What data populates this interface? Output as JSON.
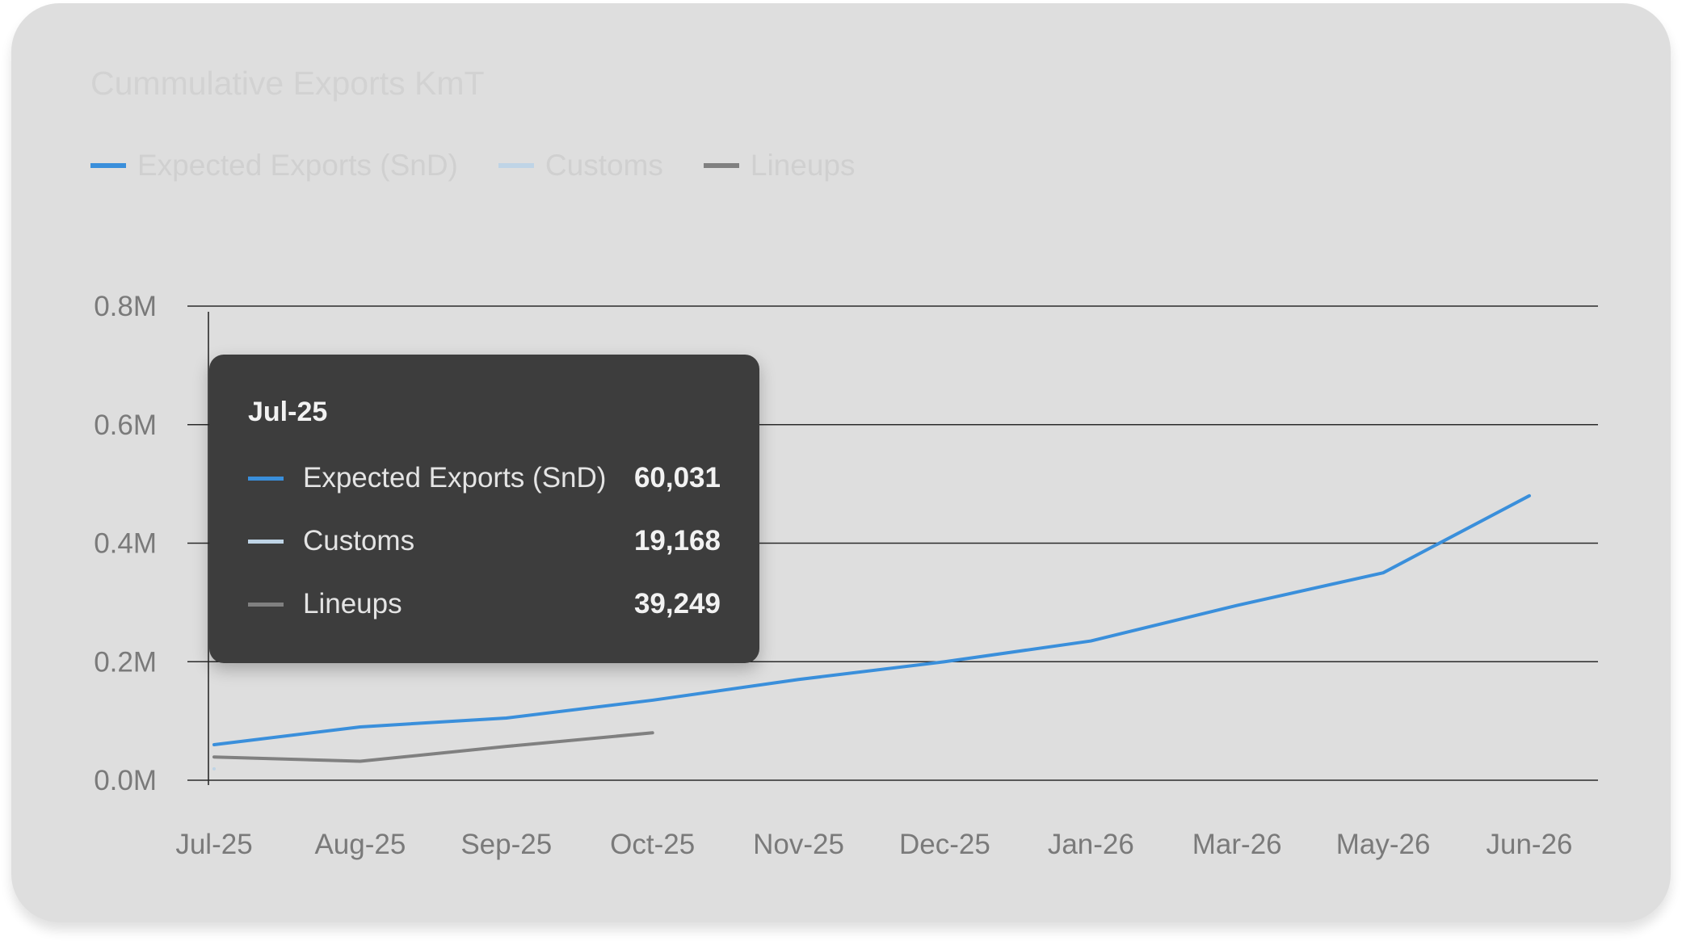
{
  "title": "Cummulative Exports KmT",
  "colors": {
    "expected": "#3a8fdb",
    "customs": "#bfd4e6",
    "lineups": "#808080"
  },
  "legend": [
    {
      "label": "Expected Exports (SnD)",
      "color": "#3a8fdb"
    },
    {
      "label": "Customs",
      "color": "#bfd4e6"
    },
    {
      "label": "Lineups",
      "color": "#808080"
    }
  ],
  "tooltip": {
    "title": "Jul-25",
    "rows": [
      {
        "label": "Expected Exports (SnD)",
        "value": "60,031",
        "color": "#3a8fdb"
      },
      {
        "label": "Customs",
        "value": "19,168",
        "color": "#bfd4e6"
      },
      {
        "label": "Lineups",
        "value": "39,249",
        "color": "#808080"
      }
    ]
  },
  "chart_data": {
    "type": "line",
    "title": "Cummulative Exports KmT",
    "xlabel": "",
    "ylabel": "",
    "categories": [
      "Jul-25",
      "Aug-25",
      "Sep-25",
      "Oct-25",
      "Nov-25",
      "Dec-25",
      "Jan-26",
      "Mar-26",
      "May-26",
      "Jun-26"
    ],
    "yticks": [
      0,
      200000,
      400000,
      600000,
      800000
    ],
    "ytick_labels": [
      "0.0M",
      "0.2M",
      "0.4M",
      "0.6M",
      "0.8M"
    ],
    "ylim": [
      0,
      800000
    ],
    "grid": true,
    "legend_position": "top-left",
    "series": [
      {
        "name": "Expected Exports (SnD)",
        "color": "#3a8fdb",
        "values": [
          60031,
          90000,
          105000,
          135000,
          170000,
          200000,
          235000,
          295000,
          350000,
          480000
        ]
      },
      {
        "name": "Customs",
        "color": "#bfd4e6",
        "values": [
          19168,
          null,
          null,
          null,
          null,
          null,
          null,
          null,
          null,
          null
        ]
      },
      {
        "name": "Lineups",
        "color": "#808080",
        "values": [
          39249,
          32000,
          57000,
          80000,
          null,
          null,
          null,
          null,
          null,
          null
        ]
      }
    ]
  }
}
